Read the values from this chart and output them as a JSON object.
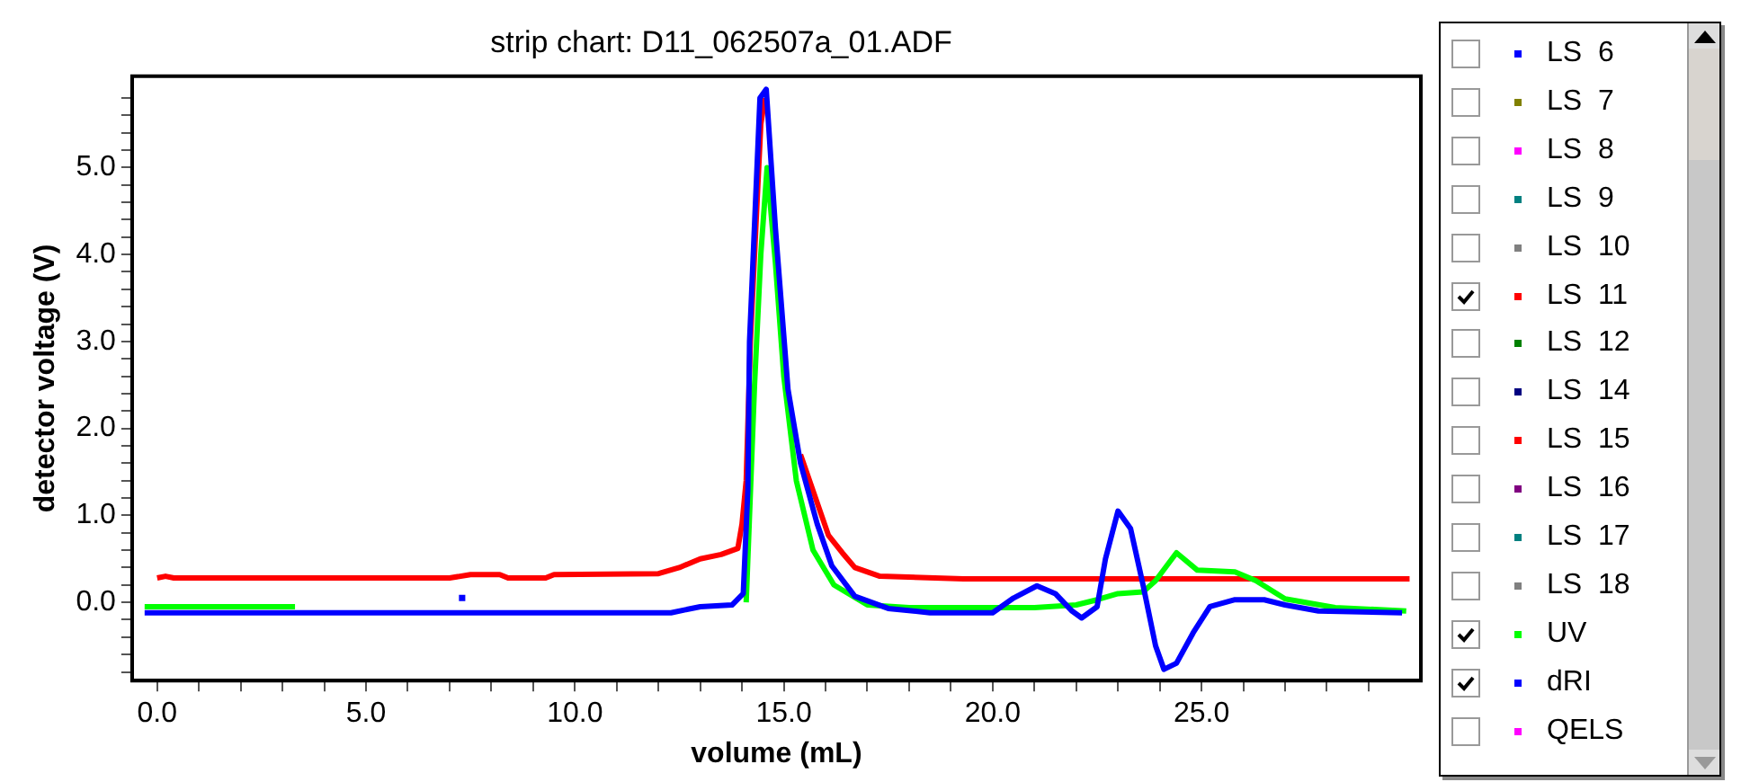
{
  "chart_data": {
    "type": "line",
    "title": "strip chart: D11_062507a_01.ADF",
    "xlabel": "volume (mL)",
    "ylabel": "detector voltage (V)",
    "xlim": [
      -0.6,
      30.25
    ],
    "ylim": [
      -0.9,
      6.05
    ],
    "xticks": [
      {
        "value": 0,
        "label": "0.0"
      },
      {
        "value": 1,
        "label": null
      },
      {
        "value": 2,
        "label": null
      },
      {
        "value": 3,
        "label": null
      },
      {
        "value": 4,
        "label": null
      },
      {
        "value": 5,
        "label": "5.0"
      },
      {
        "value": 6,
        "label": null
      },
      {
        "value": 7,
        "label": null
      },
      {
        "value": 8,
        "label": null
      },
      {
        "value": 9,
        "label": null
      },
      {
        "value": 10,
        "label": "10.0"
      },
      {
        "value": 11,
        "label": null
      },
      {
        "value": 12,
        "label": null
      },
      {
        "value": 13,
        "label": null
      },
      {
        "value": 14,
        "label": null
      },
      {
        "value": 15,
        "label": "15.0"
      },
      {
        "value": 16,
        "label": null
      },
      {
        "value": 17,
        "label": null
      },
      {
        "value": 18,
        "label": null
      },
      {
        "value": 19,
        "label": null
      },
      {
        "value": 20,
        "label": "20.0"
      },
      {
        "value": 21,
        "label": null
      },
      {
        "value": 22,
        "label": null
      },
      {
        "value": 23,
        "label": null
      },
      {
        "value": 24,
        "label": null
      },
      {
        "value": 25,
        "label": "25.0"
      },
      {
        "value": 26,
        "label": null
      },
      {
        "value": 27,
        "label": null
      },
      {
        "value": 28,
        "label": null
      },
      {
        "value": 29,
        "label": null
      }
    ],
    "yticks": [
      {
        "value": -0.8,
        "label": null
      },
      {
        "value": -0.6,
        "label": null
      },
      {
        "value": -0.4,
        "label": null
      },
      {
        "value": -0.2,
        "label": null
      },
      {
        "value": 0,
        "label": "0.0"
      },
      {
        "value": 0.2,
        "label": null
      },
      {
        "value": 0.4,
        "label": null
      },
      {
        "value": 0.6,
        "label": null
      },
      {
        "value": 0.8,
        "label": null
      },
      {
        "value": 1,
        "label": "1.0"
      },
      {
        "value": 1.2,
        "label": null
      },
      {
        "value": 1.4,
        "label": null
      },
      {
        "value": 1.6,
        "label": null
      },
      {
        "value": 1.8,
        "label": null
      },
      {
        "value": 2,
        "label": "2.0"
      },
      {
        "value": 2.2,
        "label": null
      },
      {
        "value": 2.4,
        "label": null
      },
      {
        "value": 2.6,
        "label": null
      },
      {
        "value": 2.8,
        "label": null
      },
      {
        "value": 3,
        "label": "3.0"
      },
      {
        "value": 3.2,
        "label": null
      },
      {
        "value": 3.4,
        "label": null
      },
      {
        "value": 3.6,
        "label": null
      },
      {
        "value": 3.8,
        "label": null
      },
      {
        "value": 4,
        "label": "4.0"
      },
      {
        "value": 4.2,
        "label": null
      },
      {
        "value": 4.4,
        "label": null
      },
      {
        "value": 4.6,
        "label": null
      },
      {
        "value": 4.8,
        "label": null
      },
      {
        "value": 5,
        "label": "5.0"
      },
      {
        "value": 5.2,
        "label": null
      },
      {
        "value": 5.4,
        "label": null
      },
      {
        "value": 5.6,
        "label": null
      },
      {
        "value": 5.8,
        "label": null
      }
    ],
    "grid": false,
    "legend": "right",
    "line_style": "solid",
    "series": [
      {
        "name": "LS  6",
        "color": "#0000ff"
      },
      {
        "name": "LS  7",
        "color": "#808000"
      },
      {
        "name": "LS  8",
        "color": "#ff00ff"
      },
      {
        "name": "LS  9",
        "color": "#008080"
      },
      {
        "name": "LS  10",
        "color": "#808080"
      },
      {
        "name": "LS  11",
        "color": "#ff0000",
        "x": [
          0,
          0.2,
          0.4,
          7.0,
          7.5,
          8.2,
          8.4,
          9.3,
          9.5,
          12.0,
          12.5,
          13.0,
          13.5,
          13.9,
          14.0,
          14.1,
          14.2,
          14.45,
          14.55,
          14.7,
          15.0,
          15.4,
          16.07,
          16.4,
          16.7,
          17.3,
          19.3,
          29.98
        ],
        "values": [
          0.28,
          0.3,
          0.28,
          0.28,
          0.32,
          0.32,
          0.28,
          0.28,
          0.32,
          0.33,
          0.4,
          0.5,
          0.55,
          0.62,
          0.9,
          1.4,
          3.0,
          5.5,
          5.8,
          null,
          null,
          1.7,
          0.77,
          0.57,
          0.4,
          0.3,
          0.27,
          0.27
        ]
      },
      {
        "name": "LS  12",
        "color": "#008000"
      },
      {
        "name": "LS  14",
        "color": "#000080"
      },
      {
        "name": "LS  15",
        "color": "#ff0000"
      },
      {
        "name": "LS  16",
        "color": "#800080"
      },
      {
        "name": "LS  17",
        "color": "#008080"
      },
      {
        "name": "LS  18",
        "color": "#808080"
      },
      {
        "name": "UV",
        "color": "#00ff00",
        "x": [
          -0.3,
          3.3,
          3.4,
          14.1,
          14.3,
          14.45,
          14.6,
          14.8,
          15.0,
          15.3,
          15.7,
          16.2,
          17.0,
          18.0,
          20.0,
          21.0,
          22.0,
          22.5,
          23.0,
          23.6,
          23.9,
          24.4,
          24.9,
          25.8,
          26.3,
          27.0,
          28.2,
          29.9
        ],
        "values": [
          -0.05,
          -0.05,
          null,
          0.0,
          2.5,
          4.0,
          5.0,
          3.9,
          2.6,
          1.4,
          0.6,
          0.2,
          -0.03,
          -0.06,
          -0.06,
          -0.06,
          -0.03,
          0.03,
          0.1,
          0.12,
          0.25,
          0.57,
          0.37,
          0.35,
          0.25,
          0.04,
          -0.06,
          -0.1
        ]
      },
      {
        "name": "dRI",
        "color": "#0000ff",
        "x": [
          -0.3,
          12.3,
          13.0,
          13.76,
          14.03,
          14.14,
          14.18,
          14.43,
          14.58,
          14.8,
          15.1,
          15.4,
          15.8,
          16.15,
          16.7,
          17.5,
          18.5,
          20.0,
          20.5,
          21.06,
          21.5,
          21.9,
          22.13,
          22.5,
          22.7,
          23.0,
          23.3,
          23.6,
          23.9,
          24.1,
          24.4,
          24.8,
          25.2,
          25.8,
          26.5,
          27.0,
          27.8,
          29.8
        ],
        "values": [
          -0.12,
          -0.12,
          -0.05,
          -0.03,
          0.1,
          1.3,
          3.0,
          5.8,
          5.9,
          4.3,
          2.45,
          1.6,
          0.9,
          0.42,
          0.07,
          -0.07,
          -0.12,
          -0.12,
          0.05,
          0.19,
          0.1,
          -0.1,
          -0.18,
          -0.05,
          0.5,
          1.05,
          0.85,
          0.2,
          -0.5,
          -0.77,
          -0.7,
          -0.35,
          -0.05,
          0.03,
          0.03,
          -0.03,
          -0.1,
          -0.12
        ]
      },
      {
        "name": "QELS",
        "color": "#ff00ff"
      },
      {
        "type": "scatter",
        "marker": "square",
        "color": "#0000ff",
        "x": [
          7.3
        ],
        "values": [
          0.05
        ]
      }
    ]
  }
}
